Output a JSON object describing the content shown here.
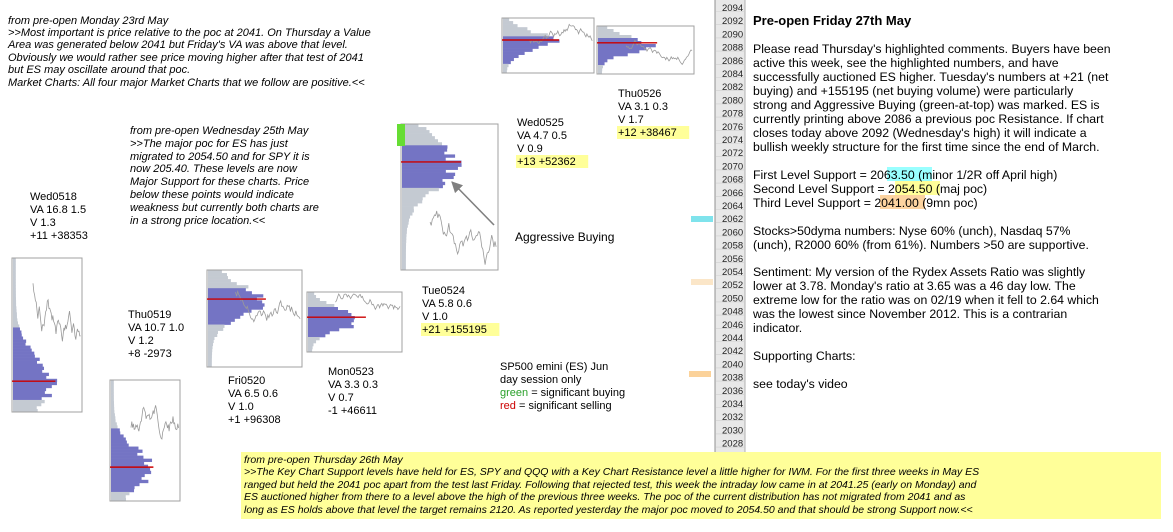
{
  "colors": {
    "profile_fill": "#7474c4",
    "profile_gray": "#c4cad2",
    "poc_line": "#cc0000",
    "hilite_yellow": "#ffff99",
    "hilite_cyan": "#99ffff",
    "hilite_orange": "#fcd3a0",
    "green": "#66dd33",
    "ladder_bg": "#e8e8e8"
  },
  "notes": {
    "monday": {
      "lines": [
        "from pre-open Monday 23rd May",
        ">>Most important is price relative to the poc at 2041.  On Thursday a Value",
        "Area was generated below 2041 but Friday's VA was above that level.",
        "Obviously we would rather see price moving higher after that test of 2041",
        "but ES may oscillate around that poc.",
        "Market Charts: All four major Market Charts that we follow are positive.<<"
      ]
    },
    "wednesday": {
      "lines": [
        "from pre-open Wednesday 25th May",
        ">>The major poc for ES has just",
        "migrated to 2054.50 and for SPY it is",
        "now 205.40. These levels are now",
        "Major Support for these charts.  Price",
        "below these points would indicate",
        "weakness but currently both charts are",
        "in a strong price location.<<"
      ]
    },
    "thursday": {
      "lines": [
        "from pre-open Thursday 26th May",
        ">>The Key Chart Support levels have held for ES, SPY and QQQ with a Key Chart Resistance level a little higher for IWM. For the first three weeks in May ES",
        "ranged but held the 2041 poc apart from the test last Friday.  Following that rejected test, this week the intraday low came in at 2041.25 (early on Monday) and",
        "ES auctioned higher from there to a level above the high of the previous three weeks.  The poc of the current distribution has not migrated from 2041 and as",
        "long as ES holds above that level the target remains 2120.  As reported yesterday the major poc moved to 2054.50 and that should be strong Support now.<<"
      ]
    }
  },
  "annotation": {
    "label": "Aggressive Buying"
  },
  "legend": {
    "line1": "SP500 emini  (ES)  Jun",
    "line2": "day session only",
    "green_word": "green",
    "green_rest": " = significant buying",
    "red_word": "red",
    "red_rest": " = significant selling"
  },
  "right_panel": {
    "title": "Pre-open Friday 27th May",
    "para1": [
      "Please read Thursday's highlighted comments. Buyers have been",
      "active this week, see the highlighted numbers, and have",
      "successfully auctioned ES higher. Tuesday's numbers at +21 (net",
      "buying) and +155195 (net buying volume) were particularly",
      "strong and Aggressive Buying (green-at-top) was marked. ES is",
      "currently printing above 2086 a previous poc Resistance.  If chart",
      "closes today above 2092 (Wednesday's high) it will indicate a",
      "bullish weekly structure for the first time since the end of March."
    ],
    "support": [
      {
        "label": "First Level Support = ",
        "value": "2063.50",
        "note": " (minor 1/2R off April high)"
      },
      {
        "label": "Second Level Support = ",
        "value": "2054.50",
        "note": " (maj poc)"
      },
      {
        "label": "Third Level Support = ",
        "value": "2041.00",
        "note": " (9mn poc)"
      }
    ],
    "para2": [
      "Stocks>50dyma numbers: Nyse 60% (unch), Nasdaq 57%",
      "(unch), R2000 60% (from 61%).  Numbers >50 are supportive."
    ],
    "para3": [
      "Sentiment: My version of the Rydex Assets Ratio was slightly",
      "lower at 3.78.  Monday's ratio at 3.65 was a 46 day low. The",
      "extreme low for the ratio was on 02/19 when it fell to 2.64 which",
      "was the lowest since November 2012. This is a contrarian",
      "indicator."
    ],
    "para4": "Supporting Charts:",
    "para5": "see today's video"
  },
  "chart_data": {
    "type": "market-profile",
    "title": "",
    "price_ladder": {
      "min": 2030,
      "max": 2094,
      "step": 2,
      "ticks": [
        2094,
        2092,
        2090,
        2088,
        2086,
        2084,
        2082,
        2080,
        2078,
        2076,
        2074,
        2072,
        2070,
        2068,
        2066,
        2064,
        2062,
        2060,
        2058,
        2056,
        2054,
        2052,
        2050,
        2048,
        2046,
        2044,
        2042,
        2040,
        2038,
        2036,
        2034,
        2032,
        2030,
        2028
      ]
    },
    "sessions": [
      {
        "name": "Wed0518",
        "va": "VA 16.8  1.5",
        "v": "V 1.3",
        "net": "+11  +38353",
        "highlight": false
      },
      {
        "name": "Thu0519",
        "va": "VA 10.7  1.0",
        "v": "V 1.2",
        "net": "+8  -2973",
        "highlight": false
      },
      {
        "name": "Fri0520",
        "va": "VA 6.5  0.6",
        "v": "V  1.0",
        "net": "+1  +96308",
        "highlight": false
      },
      {
        "name": "Mon0523",
        "va": "VA 3.3  0.3",
        "v": "V 0.7",
        "net": "-1  +46611",
        "highlight": false
      },
      {
        "name": "Tue0524",
        "va": "VA 5.8  0.6",
        "v": "V  1.0",
        "net": "+21  +155195",
        "highlight": true
      },
      {
        "name": "Wed0525",
        "va": "VA 4.7  0.5",
        "v": "V 0.9",
        "net": "+13  +52362",
        "highlight": true
      },
      {
        "name": "Thu0526",
        "va": "VA 3.1  0.3",
        "v": "V 1.7",
        "net": "+12  +38467",
        "highlight": true
      }
    ]
  }
}
